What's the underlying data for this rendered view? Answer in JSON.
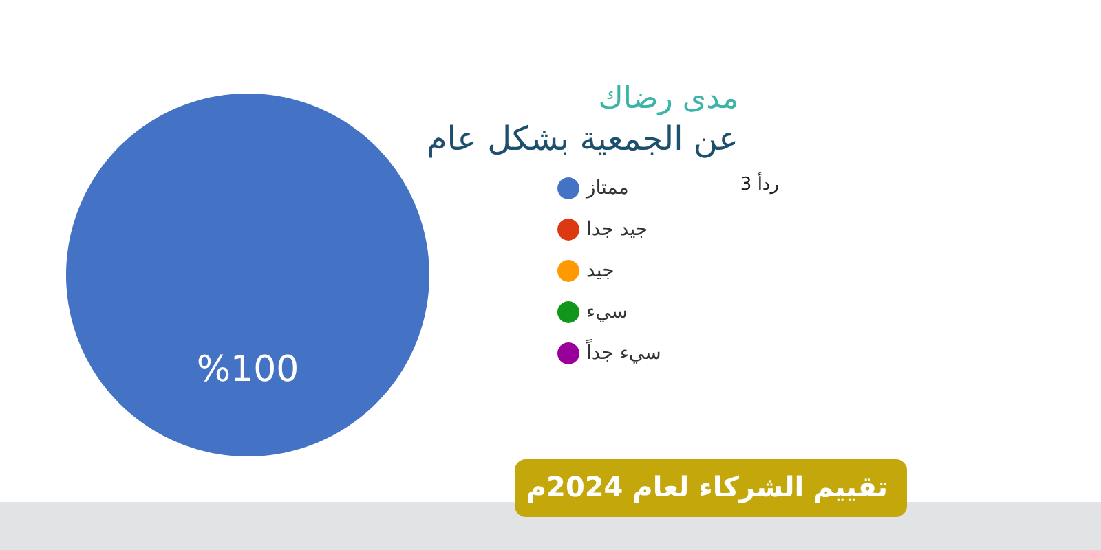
{
  "chart_data": {
    "type": "pie",
    "title": "مدى رضاك",
    "subtitle": "عن الجمعية بشكل عام",
    "categories": [
      "ممتاز",
      "جيد جدا",
      "جيد",
      "سيء",
      "سيء جداً"
    ],
    "values": [
      100,
      0,
      0,
      0,
      0
    ],
    "colors": [
      "#4472c4",
      "#dc3912",
      "#ff9900",
      "#109618",
      "#990099"
    ],
    "value_labels": [
      "%100",
      null,
      null,
      null,
      null
    ],
    "legend": "right",
    "annotations": [
      "3 ردأ",
      "تقييم الشركاء لعام 2024م"
    ]
  }
}
